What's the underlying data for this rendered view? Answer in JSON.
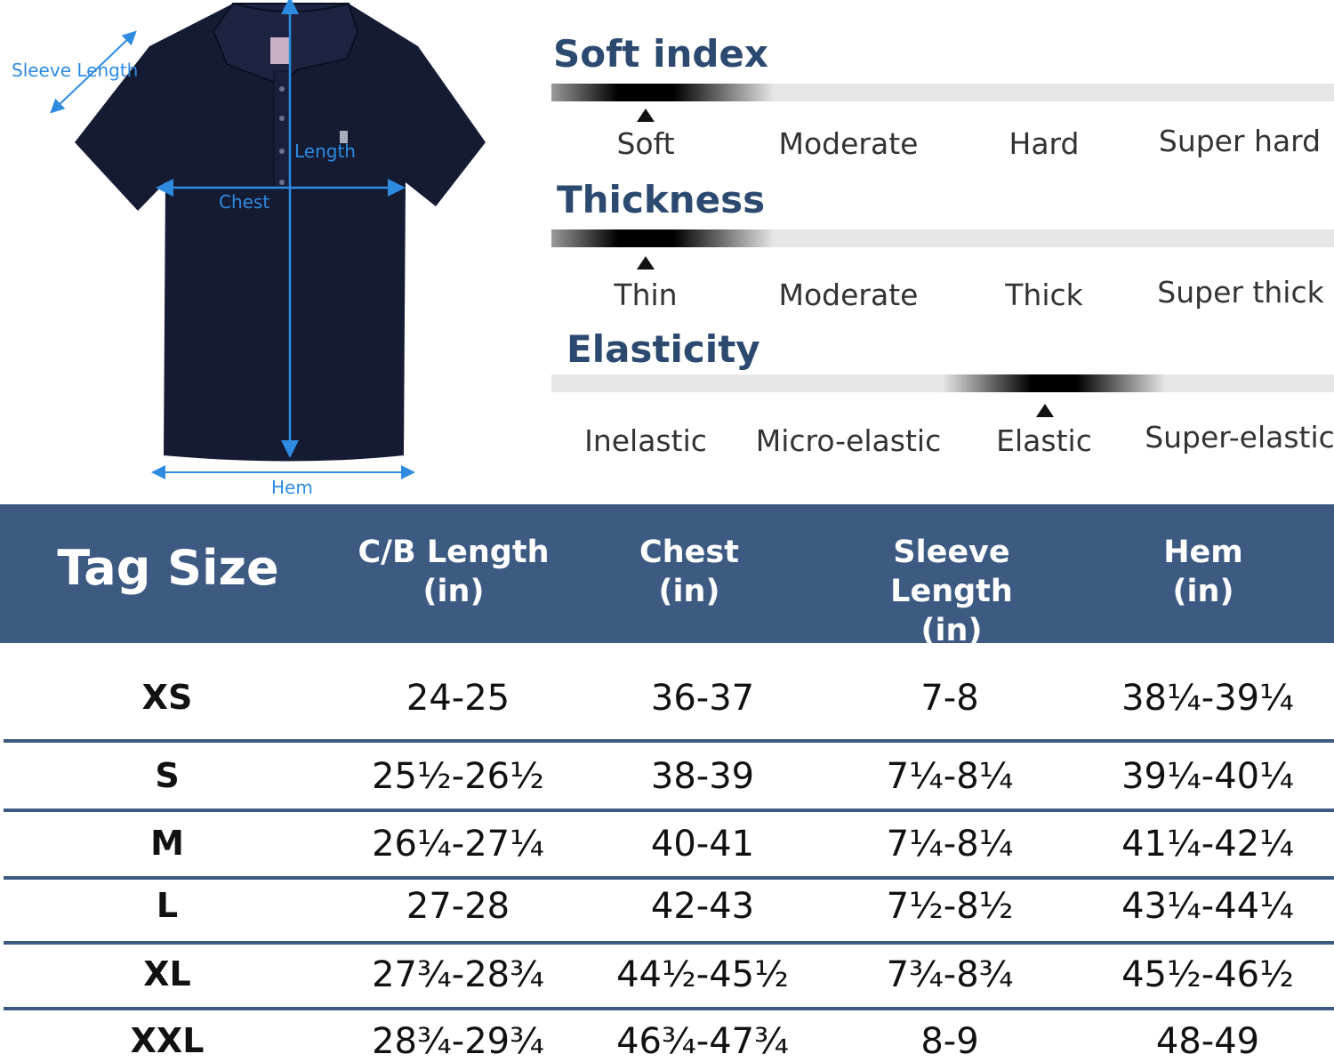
{
  "diagram": {
    "labels": {
      "sleeve_length": "Sleeve Length",
      "length": "Length",
      "chest": "Chest",
      "hem": "Hem"
    },
    "shirt_color": "#141b33",
    "arrow_color": "#2e8be0"
  },
  "indices": [
    {
      "title": "Soft index",
      "options": [
        "Soft",
        "Moderate",
        "Hard",
        "Super hard"
      ],
      "selected": "Soft"
    },
    {
      "title": "Thickness",
      "options": [
        "Thin",
        "Moderate",
        "Thick",
        "Super thick"
      ],
      "selected": "Thin"
    },
    {
      "title": "Elasticity",
      "options": [
        "Inelastic",
        "Micro-elastic",
        "Elastic",
        "Super-elastic"
      ],
      "selected": "Elastic"
    }
  ],
  "size_table": {
    "headers": {
      "tag_size": "Tag Size",
      "columns": [
        {
          "name": "C/B Length",
          "unit": "(in)"
        },
        {
          "name": "Chest",
          "unit": "(in)"
        },
        {
          "name": "Sleeve Length",
          "unit": "(in)"
        },
        {
          "name": "Hem",
          "unit": "(in)"
        }
      ]
    },
    "rows": [
      {
        "size": "XS",
        "cb_length": "24-25",
        "chest": "36-37",
        "sleeve": "7-8",
        "hem": "38¼-39¼"
      },
      {
        "size": "S",
        "cb_length": "25½-26½",
        "chest": "38-39",
        "sleeve": "7¼-8¼",
        "hem": "39¼-40¼"
      },
      {
        "size": "M",
        "cb_length": "26¼-27¼",
        "chest": "40-41",
        "sleeve": "7¼-8¼",
        "hem": "41¼-42¼"
      },
      {
        "size": "L",
        "cb_length": "27-28",
        "chest": "42-43",
        "sleeve": "7½-8½",
        "hem": "43¼-44¼"
      },
      {
        "size": "XL",
        "cb_length": "27¾-28¾",
        "chest": "44½-45½",
        "sleeve": "7¾-8¾",
        "hem": "45½-46½"
      },
      {
        "size": "XXL",
        "cb_length": "28¾-29¾",
        "chest": "46¾-47¾",
        "sleeve": "8-9",
        "hem": "48-49"
      }
    ],
    "header_color": "#3c5a82"
  }
}
